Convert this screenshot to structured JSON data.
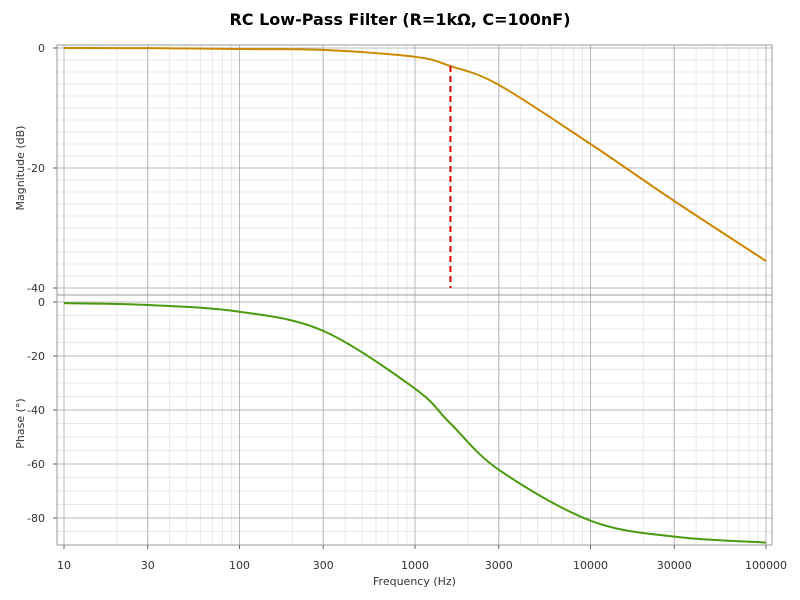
{
  "chart_data": {
    "type": "line",
    "title": "RC Low-Pass Filter (R=1kΩ, C=100nF)",
    "xlabel": "Frequency (Hz)",
    "x_scale": "log",
    "xlim": [
      10,
      100000
    ],
    "x_ticks": [
      10,
      30,
      100,
      300,
      1000,
      3000,
      10000,
      30000,
      100000
    ],
    "x_tick_labels": [
      "10",
      "30",
      "100",
      "300",
      "1000",
      "3000",
      "10000",
      "30000",
      "100000"
    ],
    "grid": true,
    "panels": [
      {
        "ylabel": "Magnitude (dB)",
        "ylim": [
          -40,
          0
        ],
        "y_ticks": [
          0,
          -20,
          -40
        ],
        "y_tick_labels": [
          "0",
          "-20",
          "-40"
        ],
        "series": [
          {
            "color": "#cc8800",
            "x": [
              10,
              30,
              100,
              300,
              1000,
              1592,
              3000,
              10000,
              30000,
              100000
            ],
            "y": [
              0,
              -0.03,
              -0.17,
              -0.31,
              -1.47,
              -3.01,
              -6.14,
              -16.0,
              -25.5,
              -35.5
            ]
          }
        ],
        "annotations": [
          {
            "type": "vline",
            "x": 1592,
            "y_from": -3.01,
            "y_to": -40,
            "color": "#dd0000",
            "style": "dashed"
          }
        ]
      },
      {
        "ylabel": "Phase (°)",
        "ylim": [
          -90,
          0
        ],
        "y_ticks": [
          0,
          -20,
          -40,
          -60,
          -80
        ],
        "y_tick_labels": [
          "0",
          "-20",
          "-40",
          "-60",
          "-80"
        ],
        "series": [
          {
            "color": "#4a9a10",
            "x": [
              10,
              30,
              100,
              300,
              1000,
              1592,
              3000,
              10000,
              30000,
              100000
            ],
            "y": [
              -0.4,
              -1.1,
              -3.6,
              -10.7,
              -32.1,
              -45.0,
              -62.1,
              -81.0,
              -86.9,
              -89.1
            ]
          }
        ]
      }
    ]
  }
}
